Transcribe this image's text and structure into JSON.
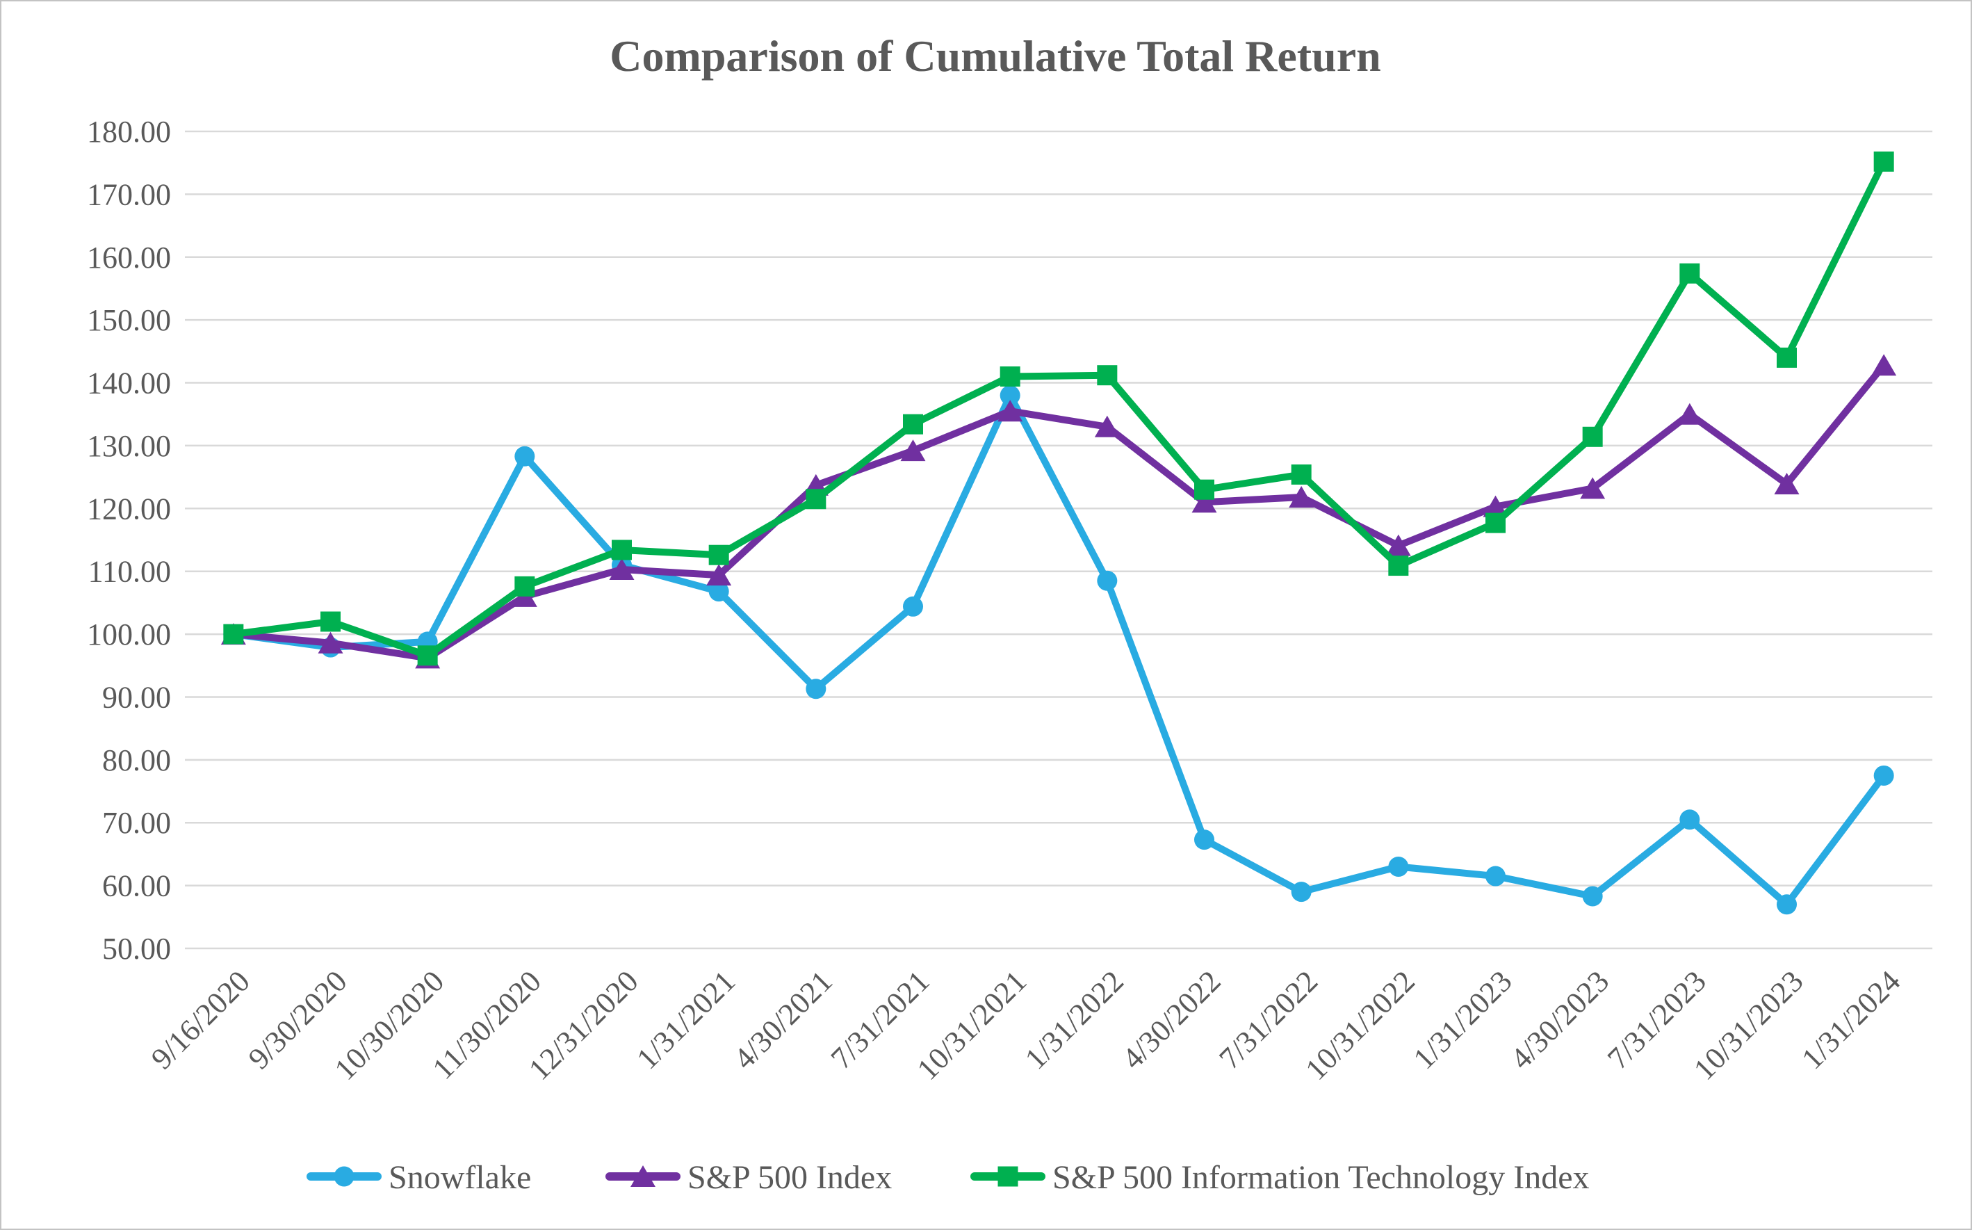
{
  "chart_data": {
    "type": "line",
    "title": "Comparison of Cumulative Total Return",
    "categories": [
      "9/16/2020",
      "9/30/2020",
      "10/30/2020",
      "11/30/2020",
      "12/31/2020",
      "1/31/2021",
      "4/30/2021",
      "7/31/2021",
      "10/31/2021",
      "1/31/2022",
      "4/30/2022",
      "7/31/2022",
      "10/31/2022",
      "1/31/2023",
      "4/30/2023",
      "7/31/2023",
      "10/31/2023",
      "1/31/2024"
    ],
    "series": [
      {
        "name": "Snowflake",
        "color": "#29ABE2",
        "marker": "circle",
        "values": [
          100.0,
          97.9,
          98.8,
          128.3,
          111.0,
          106.8,
          91.3,
          104.4,
          138.0,
          108.5,
          67.3,
          59.0,
          63.0,
          61.5,
          58.3,
          70.5,
          57.0,
          77.5
        ]
      },
      {
        "name": "S&P 500 Index",
        "color": "#7030A0",
        "marker": "triangle",
        "values": [
          100.0,
          98.6,
          96.2,
          106.0,
          110.3,
          109.4,
          123.7,
          129.2,
          135.5,
          133.0,
          121.0,
          121.8,
          114.1,
          120.3,
          123.2,
          135.0,
          123.9,
          142.8
        ]
      },
      {
        "name": "S&P 500 Information Technology Index",
        "color": "#00B050",
        "marker": "square",
        "values": [
          100.0,
          102.0,
          96.6,
          107.6,
          113.4,
          112.6,
          121.5,
          133.4,
          141.0,
          141.2,
          123.0,
          125.4,
          110.9,
          117.7,
          131.4,
          157.4,
          144.0,
          175.2
        ]
      }
    ],
    "ylim": [
      50,
      180
    ],
    "ytick_step": 10,
    "y_tick_labels": [
      "180.00",
      "170.00",
      "160.00",
      "150.00",
      "140.00",
      "130.00",
      "120.00",
      "110.00",
      "100.00",
      "90.00",
      "80.00",
      "70.00",
      "60.00",
      "50.00"
    ],
    "xlabel": "",
    "ylabel": "",
    "grid": true,
    "legend_position": "bottom",
    "text_color": "#595959",
    "grid_color": "#D9D9D9"
  }
}
